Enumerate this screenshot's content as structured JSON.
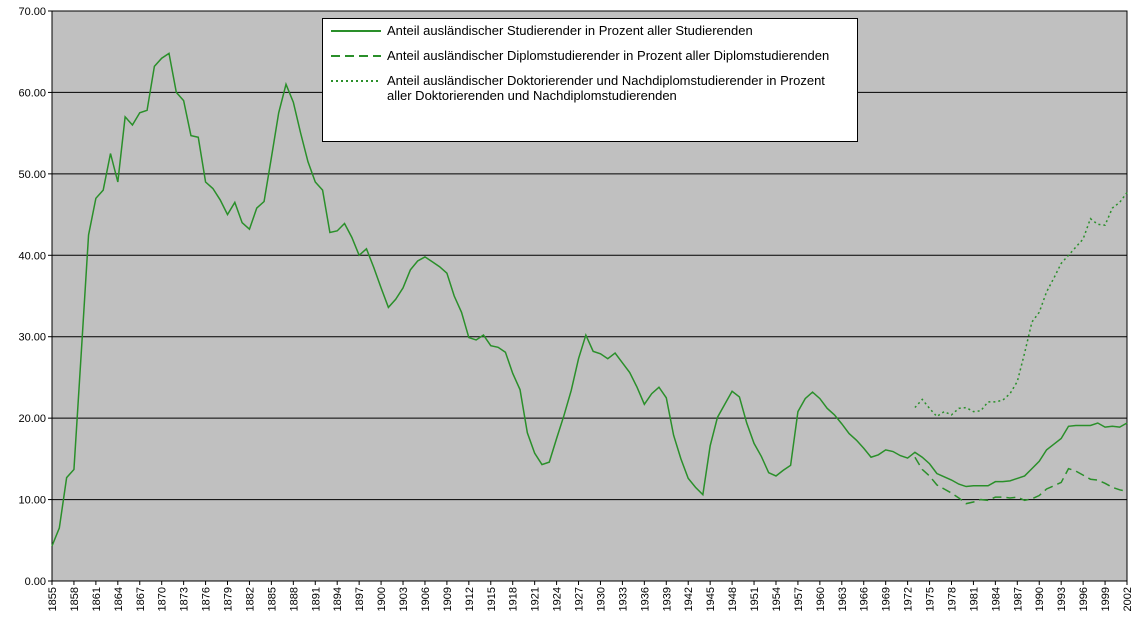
{
  "chart_data": {
    "type": "line",
    "x": [
      1855,
      1856,
      1857,
      1858,
      1859,
      1860,
      1861,
      1862,
      1863,
      1864,
      1865,
      1866,
      1867,
      1868,
      1869,
      1870,
      1871,
      1872,
      1873,
      1874,
      1875,
      1876,
      1877,
      1878,
      1879,
      1880,
      1881,
      1882,
      1883,
      1884,
      1885,
      1886,
      1887,
      1888,
      1889,
      1890,
      1891,
      1892,
      1893,
      1894,
      1895,
      1896,
      1897,
      1898,
      1899,
      1900,
      1901,
      1902,
      1903,
      1904,
      1905,
      1906,
      1907,
      1908,
      1909,
      1910,
      1911,
      1912,
      1913,
      1914,
      1915,
      1916,
      1917,
      1918,
      1919,
      1920,
      1921,
      1922,
      1923,
      1924,
      1925,
      1926,
      1927,
      1928,
      1929,
      1930,
      1931,
      1932,
      1933,
      1934,
      1935,
      1936,
      1937,
      1938,
      1939,
      1940,
      1941,
      1942,
      1943,
      1944,
      1945,
      1946,
      1947,
      1948,
      1949,
      1950,
      1951,
      1952,
      1953,
      1954,
      1955,
      1956,
      1957,
      1958,
      1959,
      1960,
      1961,
      1962,
      1963,
      1964,
      1965,
      1966,
      1967,
      1968,
      1969,
      1970,
      1971,
      1972,
      1973,
      1974,
      1975,
      1976,
      1977,
      1978,
      1979,
      1980,
      1981,
      1982,
      1983,
      1984,
      1985,
      1986,
      1987,
      1988,
      1989,
      1990,
      1991,
      1992,
      1993,
      1994,
      1995,
      1996,
      1997,
      1998,
      1999,
      2000,
      2001,
      2002
    ],
    "xlim": [
      1855,
      2002
    ],
    "xticks": [
      1855,
      1858,
      1861,
      1864,
      1867,
      1870,
      1873,
      1876,
      1879,
      1882,
      1885,
      1888,
      1891,
      1894,
      1897,
      1900,
      1903,
      1906,
      1909,
      1912,
      1915,
      1918,
      1921,
      1924,
      1927,
      1930,
      1933,
      1936,
      1939,
      1942,
      1945,
      1948,
      1951,
      1954,
      1957,
      1960,
      1963,
      1966,
      1969,
      1972,
      1975,
      1978,
      1981,
      1984,
      1987,
      1990,
      1993,
      1996,
      1999,
      2002
    ],
    "ylim": [
      0,
      70
    ],
    "yticks": [
      {
        "value": 0,
        "label": "0.00"
      },
      {
        "value": 10,
        "label": "10.00"
      },
      {
        "value": 20,
        "label": "20.00"
      },
      {
        "value": 30,
        "label": "30.00"
      },
      {
        "value": 40,
        "label": "40.00"
      },
      {
        "value": 50,
        "label": "50.00"
      },
      {
        "value": 60,
        "label": "60.00"
      },
      {
        "value": 70,
        "label": "70.00"
      }
    ],
    "grid": true,
    "series": [
      {
        "name": "Anteil ausländischer Studierender in Prozent aller Studierenden",
        "color": "#2a8f2a",
        "style": "solid",
        "values": [
          4.3,
          6.5,
          12.7,
          13.7,
          28,
          42.5,
          47,
          48,
          52.5,
          49,
          57,
          56,
          57.5,
          57.8,
          63.2,
          64.2,
          64.8,
          60,
          59,
          54.7,
          54.5,
          49,
          48.2,
          46.8,
          45,
          46.5,
          44,
          43.2,
          45.8,
          46.6,
          52,
          57.5,
          61,
          58.8,
          55,
          51.5,
          49,
          48,
          42.8,
          43,
          43.9,
          42.2,
          40,
          40.8,
          38.5,
          36,
          33.6,
          34.6,
          36,
          38.2,
          39.3,
          39.8,
          39.2,
          38.6,
          37.8,
          35,
          33,
          29.9,
          29.6,
          30.2,
          28.9,
          28.7,
          28.1,
          25.5,
          23.5,
          18.2,
          15.7,
          14.3,
          14.6,
          17.5,
          20.3,
          23.4,
          27.3,
          30.2,
          28.2,
          27.9,
          27.3,
          28,
          26.8,
          25.6,
          23.8,
          21.7,
          23,
          23.8,
          22.5,
          17.9,
          15,
          12.6,
          11.5,
          10.6,
          16.6,
          20.1,
          21.7,
          23.3,
          22.6,
          19.4,
          16.9,
          15.3,
          13.3,
          12.9,
          13.6,
          14.2,
          20.8,
          22.4,
          23.2,
          22.4,
          21.2,
          20.4,
          19.3,
          18.1,
          17.3,
          16.3,
          15.2,
          15.5,
          16.1,
          15.9,
          15.4,
          15.1,
          15.8,
          15.2,
          14.4,
          13.2,
          12.8,
          12.4,
          11.9,
          11.6,
          11.7,
          11.7,
          11.7,
          12.2,
          12.2,
          12.3,
          12.6,
          12.9,
          13.8,
          14.7,
          16.1,
          16.8,
          17.5,
          19,
          19.1,
          19.1,
          19.1,
          19.4,
          18.9,
          19,
          18.9,
          19.4
        ]
      },
      {
        "name": "Anteil ausländischer Diplomstudierender in Prozent aller Diplomstudierenden",
        "color": "#2a8f2a",
        "style": "dashed",
        "values": [
          null,
          null,
          null,
          null,
          null,
          null,
          null,
          null,
          null,
          null,
          null,
          null,
          null,
          null,
          null,
          null,
          null,
          null,
          null,
          null,
          null,
          null,
          null,
          null,
          null,
          null,
          null,
          null,
          null,
          null,
          null,
          null,
          null,
          null,
          null,
          null,
          null,
          null,
          null,
          null,
          null,
          null,
          null,
          null,
          null,
          null,
          null,
          null,
          null,
          null,
          null,
          null,
          null,
          null,
          null,
          null,
          null,
          null,
          null,
          null,
          null,
          null,
          null,
          null,
          null,
          null,
          null,
          null,
          null,
          null,
          null,
          null,
          null,
          null,
          null,
          null,
          null,
          null,
          null,
          null,
          null,
          null,
          null,
          null,
          null,
          null,
          null,
          null,
          null,
          null,
          null,
          null,
          null,
          null,
          null,
          null,
          null,
          null,
          null,
          null,
          null,
          null,
          null,
          null,
          null,
          null,
          null,
          null,
          null,
          null,
          null,
          null,
          null,
          null,
          null,
          null,
          null,
          null,
          15.2,
          13.7,
          12.9,
          11.8,
          11.3,
          10.8,
          10.2,
          9.5,
          9.7,
          10,
          9.9,
          10.3,
          10.3,
          10.2,
          10.3,
          9.9,
          10.1,
          10.5,
          11.3,
          11.7,
          12.1,
          13.8,
          13.5,
          13,
          12.5,
          12.4,
          12,
          11.5,
          11.2,
          11
        ]
      },
      {
        "name": "Anteil ausländischer Doktorierender und Nachdiplomstudierender in Prozent aller Doktorierenden und Nachdiplomstudierenden",
        "color": "#2a8f2a",
        "style": "dotted",
        "values": [
          null,
          null,
          null,
          null,
          null,
          null,
          null,
          null,
          null,
          null,
          null,
          null,
          null,
          null,
          null,
          null,
          null,
          null,
          null,
          null,
          null,
          null,
          null,
          null,
          null,
          null,
          null,
          null,
          null,
          null,
          null,
          null,
          null,
          null,
          null,
          null,
          null,
          null,
          null,
          null,
          null,
          null,
          null,
          null,
          null,
          null,
          null,
          null,
          null,
          null,
          null,
          null,
          null,
          null,
          null,
          null,
          null,
          null,
          null,
          null,
          null,
          null,
          null,
          null,
          null,
          null,
          null,
          null,
          null,
          null,
          null,
          null,
          null,
          null,
          null,
          null,
          null,
          null,
          null,
          null,
          null,
          null,
          null,
          null,
          null,
          null,
          null,
          null,
          null,
          null,
          null,
          null,
          null,
          null,
          null,
          null,
          null,
          null,
          null,
          null,
          null,
          null,
          null,
          null,
          null,
          null,
          null,
          null,
          null,
          null,
          null,
          null,
          null,
          null,
          null,
          null,
          null,
          null,
          21.3,
          22.3,
          21.2,
          20.2,
          20.8,
          20.4,
          21.2,
          21.3,
          20.8,
          20.9,
          22,
          22,
          22.2,
          23,
          24.5,
          28,
          31.8,
          33,
          35.5,
          37.2,
          39,
          40,
          41,
          42,
          44.5,
          43.8,
          43.7,
          45.8,
          46.5,
          47.7
        ]
      }
    ]
  }
}
